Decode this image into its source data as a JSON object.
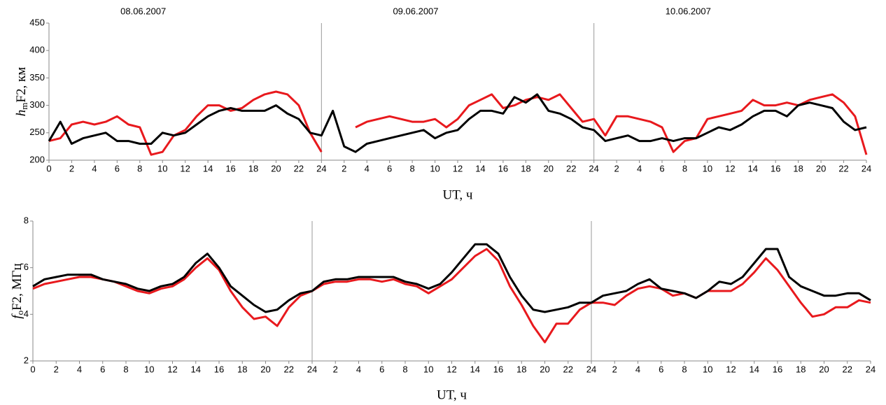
{
  "chart_data": [
    {
      "type": "line",
      "annotations": [
        "08.06.2007",
        "09.06.2007",
        "10.06.2007"
      ],
      "ylabel": [
        "h",
        "m",
        "F2, км"
      ],
      "xlabel": "UT, ч",
      "x": [
        0,
        1,
        2,
        3,
        4,
        5,
        6,
        7,
        8,
        9,
        10,
        11,
        12,
        13,
        14,
        15,
        16,
        17,
        18,
        19,
        20,
        21,
        22,
        23,
        24,
        25,
        26,
        27,
        28,
        29,
        30,
        31,
        32,
        33,
        34,
        35,
        36,
        37,
        38,
        39,
        40,
        41,
        42,
        43,
        44,
        45,
        46,
        47,
        48,
        49,
        50,
        51,
        52,
        53,
        54,
        55,
        56,
        57,
        58,
        59,
        60,
        61,
        62,
        63,
        64,
        65,
        66,
        67,
        68,
        69,
        70,
        71,
        72
      ],
      "xlim": [
        0,
        72
      ],
      "xticks": [
        0,
        2,
        4,
        6,
        8,
        10,
        12,
        14,
        16,
        18,
        20,
        22,
        24,
        {
          "value": 26,
          "label": "2"
        },
        {
          "value": 28,
          "label": "4"
        },
        {
          "value": 30,
          "label": "6"
        },
        {
          "value": 32,
          "label": "8"
        },
        {
          "value": 34,
          "label": "10"
        },
        {
          "value": 36,
          "label": "12"
        },
        {
          "value": 38,
          "label": "14"
        },
        {
          "value": 40,
          "label": "16"
        },
        {
          "value": 42,
          "label": "18"
        },
        {
          "value": 44,
          "label": "20"
        },
        {
          "value": 46,
          "label": "22"
        },
        {
          "value": 48,
          "label": "24"
        },
        {
          "value": 50,
          "label": "2"
        },
        {
          "value": 52,
          "label": "4"
        },
        {
          "value": 54,
          "label": "6"
        },
        {
          "value": 56,
          "label": "8"
        },
        {
          "value": 58,
          "label": "10"
        },
        {
          "value": 60,
          "label": "12"
        },
        {
          "value": 62,
          "label": "14"
        },
        {
          "value": 64,
          "label": "16"
        },
        {
          "value": 66,
          "label": "18"
        },
        {
          "value": 68,
          "label": "20"
        },
        {
          "value": 70,
          "label": "22"
        },
        {
          "value": 72,
          "label": "24"
        }
      ],
      "ylim": [
        200,
        450
      ],
      "yticks": [
        200,
        250,
        300,
        350,
        400,
        450
      ],
      "series": [
        {
          "color": "#e8191d",
          "values": [
            235,
            240,
            265,
            270,
            265,
            270,
            280,
            265,
            260,
            210,
            215,
            245,
            255,
            280,
            300,
            300,
            290,
            295,
            310,
            320,
            325,
            320,
            300,
            250,
            215,
            null,
            null,
            260,
            270,
            275,
            280,
            275,
            270,
            270,
            275,
            260,
            275,
            300,
            310,
            320,
            295,
            300,
            310,
            315,
            310,
            320,
            295,
            270,
            275,
            245,
            280,
            280,
            275,
            270,
            260,
            215,
            235,
            240,
            275,
            280,
            285,
            290,
            310,
            300,
            300,
            305,
            300,
            310,
            315,
            320,
            305,
            280,
            210
          ]
        },
        {
          "color": "#000000",
          "values": [
            235,
            270,
            230,
            240,
            245,
            250,
            235,
            235,
            230,
            230,
            250,
            245,
            250,
            265,
            280,
            290,
            295,
            290,
            290,
            290,
            300,
            285,
            275,
            250,
            245,
            290,
            225,
            215,
            230,
            235,
            240,
            245,
            250,
            255,
            240,
            250,
            255,
            275,
            290,
            290,
            285,
            315,
            305,
            320,
            290,
            285,
            275,
            260,
            255,
            235,
            240,
            245,
            235,
            235,
            240,
            235,
            240,
            240,
            250,
            260,
            255,
            265,
            280,
            290,
            290,
            280,
            300,
            305,
            300,
            295,
            270,
            255,
            260
          ]
        }
      ]
    },
    {
      "type": "line",
      "ylabel": [
        "f",
        "o",
        "F2, МГц"
      ],
      "xlabel": "UT, ч",
      "x": [
        0,
        1,
        2,
        3,
        4,
        5,
        6,
        7,
        8,
        9,
        10,
        11,
        12,
        13,
        14,
        15,
        16,
        17,
        18,
        19,
        20,
        21,
        22,
        23,
        24,
        25,
        26,
        27,
        28,
        29,
        30,
        31,
        32,
        33,
        34,
        35,
        36,
        37,
        38,
        39,
        40,
        41,
        42,
        43,
        44,
        45,
        46,
        47,
        48,
        49,
        50,
        51,
        52,
        53,
        54,
        55,
        56,
        57,
        58,
        59,
        60,
        61,
        62,
        63,
        64,
        65,
        66,
        67,
        68,
        69,
        70,
        71,
        72
      ],
      "xlim": [
        0,
        72
      ],
      "xticks": [
        0,
        2,
        4,
        6,
        8,
        10,
        12,
        14,
        16,
        18,
        20,
        22,
        24,
        {
          "value": 26,
          "label": "2"
        },
        {
          "value": 28,
          "label": "4"
        },
        {
          "value": 30,
          "label": "6"
        },
        {
          "value": 32,
          "label": "8"
        },
        {
          "value": 34,
          "label": "10"
        },
        {
          "value": 36,
          "label": "12"
        },
        {
          "value": 38,
          "label": "14"
        },
        {
          "value": 40,
          "label": "16"
        },
        {
          "value": 42,
          "label": "18"
        },
        {
          "value": 44,
          "label": "20"
        },
        {
          "value": 46,
          "label": "22"
        },
        {
          "value": 48,
          "label": "24"
        },
        {
          "value": 50,
          "label": "2"
        },
        {
          "value": 52,
          "label": "4"
        },
        {
          "value": 54,
          "label": "6"
        },
        {
          "value": 56,
          "label": "8"
        },
        {
          "value": 58,
          "label": "10"
        },
        {
          "value": 60,
          "label": "12"
        },
        {
          "value": 62,
          "label": "14"
        },
        {
          "value": 64,
          "label": "16"
        },
        {
          "value": 66,
          "label": "18"
        },
        {
          "value": 68,
          "label": "20"
        },
        {
          "value": 70,
          "label": "22"
        },
        {
          "value": 72,
          "label": "24"
        }
      ],
      "ylim": [
        2,
        8
      ],
      "yticks": [
        2,
        4,
        6,
        8
      ],
      "series": [
        {
          "color": "#e8191d",
          "values": [
            5.1,
            5.3,
            5.4,
            5.5,
            5.6,
            5.6,
            5.5,
            5.4,
            5.2,
            5.0,
            4.9,
            5.1,
            5.2,
            5.5,
            6.0,
            6.4,
            5.9,
            5.0,
            4.3,
            3.8,
            3.9,
            3.5,
            4.3,
            4.8,
            5.0,
            5.3,
            5.4,
            5.4,
            5.5,
            5.5,
            5.4,
            5.5,
            5.3,
            5.2,
            4.9,
            5.2,
            5.5,
            6.0,
            6.5,
            6.8,
            6.3,
            5.2,
            4.4,
            3.5,
            2.8,
            3.6,
            3.6,
            4.2,
            4.5,
            4.5,
            4.4,
            4.8,
            5.1,
            5.2,
            5.1,
            4.8,
            4.9,
            4.7,
            5.0,
            5.0,
            5.0,
            5.3,
            5.8,
            6.4,
            5.9,
            5.2,
            4.5,
            3.9,
            4.0,
            4.3,
            4.3,
            4.6,
            4.5
          ]
        },
        {
          "color": "#000000",
          "values": [
            5.2,
            5.5,
            5.6,
            5.7,
            5.7,
            5.7,
            5.5,
            5.4,
            5.3,
            5.1,
            5.0,
            5.2,
            5.3,
            5.6,
            6.2,
            6.6,
            6.0,
            5.2,
            4.8,
            4.4,
            4.1,
            4.2,
            4.6,
            4.9,
            5.0,
            5.4,
            5.5,
            5.5,
            5.6,
            5.6,
            5.6,
            5.6,
            5.4,
            5.3,
            5.1,
            5.3,
            5.8,
            6.4,
            7.0,
            7.0,
            6.6,
            5.6,
            4.8,
            4.2,
            4.1,
            4.2,
            4.3,
            4.5,
            4.5,
            4.8,
            4.9,
            5.0,
            5.3,
            5.5,
            5.1,
            5.0,
            4.9,
            4.7,
            5.0,
            5.4,
            5.3,
            5.6,
            6.2,
            6.8,
            6.8,
            5.6,
            5.2,
            5.0,
            4.8,
            4.8,
            4.9,
            4.9,
            4.6
          ]
        }
      ]
    }
  ]
}
